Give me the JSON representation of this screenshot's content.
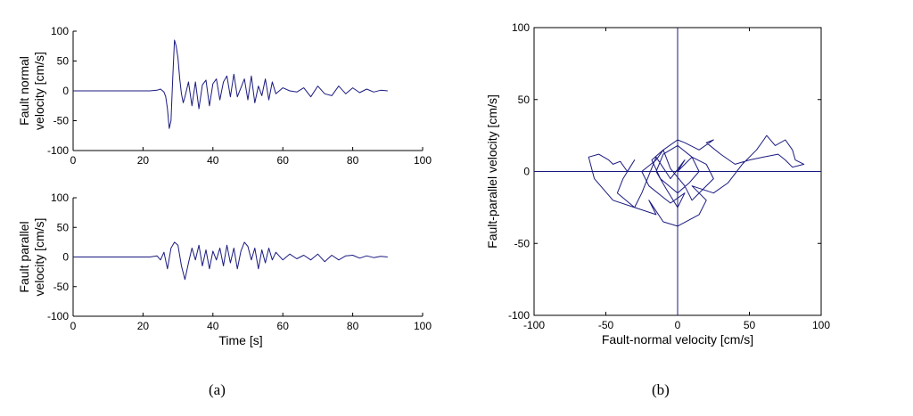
{
  "colors": {
    "line": "#1a1a80",
    "axis": "#000000",
    "background": "#ffffff"
  },
  "captions": {
    "a": "(a)",
    "b": "(b)"
  },
  "chart_data": [
    {
      "id": "fault-normal-timeseries",
      "type": "line",
      "xlabel": "",
      "ylabel": "Fault normal\nvelocity [cm/s]",
      "xlim": [
        0,
        100
      ],
      "ylim": [
        -100,
        100
      ],
      "xticks": [
        0,
        20,
        40,
        60,
        80,
        100
      ],
      "xtick_labels": [
        "0",
        "20",
        "40",
        "60",
        "80",
        "100"
      ],
      "yticks": [
        100,
        50,
        0,
        -50,
        -100
      ],
      "ytick_labels": [
        "100",
        "50",
        "0",
        "-50",
        "-100"
      ],
      "grid": false,
      "series": [
        {
          "x": [
            0,
            22,
            24,
            25,
            26,
            26.5,
            27,
            27.5,
            28,
            28.5,
            29,
            29.5,
            30,
            30.5,
            31,
            31.5,
            32,
            33,
            34,
            35,
            36,
            37,
            38,
            39,
            40,
            41,
            42,
            43,
            44,
            45,
            46,
            47,
            48,
            49,
            50,
            51,
            52,
            53,
            54,
            55,
            56,
            57,
            58,
            60,
            62,
            64,
            66,
            68,
            70,
            72,
            74,
            76,
            78,
            80,
            82,
            84,
            86,
            88,
            90
          ],
          "y": [
            0,
            0,
            1,
            3,
            -2,
            -10,
            -30,
            -63,
            -50,
            20,
            85,
            75,
            55,
            20,
            -5,
            -20,
            -10,
            15,
            -25,
            15,
            -30,
            10,
            18,
            -25,
            12,
            20,
            -15,
            15,
            25,
            -10,
            28,
            -10,
            5,
            20,
            -15,
            25,
            -20,
            8,
            -8,
            20,
            -15,
            15,
            -5,
            5,
            0,
            -2,
            5,
            -10,
            8,
            -5,
            -8,
            8,
            -5,
            5,
            -3,
            3,
            -2,
            1,
            0
          ]
        }
      ]
    },
    {
      "id": "fault-parallel-timeseries",
      "type": "line",
      "xlabel": "Time [s]",
      "ylabel": "Fault parallel\nvelocity [cm/s]",
      "xlim": [
        0,
        100
      ],
      "ylim": [
        -100,
        100
      ],
      "xticks": [
        0,
        20,
        40,
        60,
        80,
        100
      ],
      "xtick_labels": [
        "0",
        "20",
        "40",
        "60",
        "80",
        "100"
      ],
      "yticks": [
        100,
        50,
        0,
        -50,
        -100
      ],
      "ytick_labels": [
        "100",
        "50",
        "0",
        "-50",
        "-100"
      ],
      "grid": false,
      "series": [
        {
          "x": [
            0,
            22,
            24,
            25,
            26,
            27,
            28,
            29,
            30,
            31,
            32,
            33,
            34,
            35,
            36,
            37,
            38,
            39,
            40,
            41,
            42,
            43,
            44,
            45,
            46,
            47,
            48,
            49,
            50,
            51,
            52,
            53,
            54,
            55,
            56,
            57,
            58,
            60,
            62,
            64,
            66,
            68,
            70,
            72,
            74,
            76,
            78,
            80,
            82,
            84,
            86,
            88,
            90
          ],
          "y": [
            0,
            0,
            2,
            -5,
            8,
            -20,
            15,
            25,
            20,
            -15,
            -38,
            -10,
            15,
            -5,
            20,
            -15,
            12,
            -20,
            10,
            -5,
            15,
            -15,
            20,
            -10,
            15,
            -20,
            10,
            25,
            18,
            -5,
            15,
            -20,
            12,
            -10,
            15,
            -5,
            8,
            -5,
            5,
            -3,
            3,
            -5,
            5,
            -8,
            3,
            -5,
            2,
            3,
            -2,
            2,
            -1,
            1,
            0
          ]
        }
      ]
    },
    {
      "id": "hodogram",
      "type": "line",
      "xlabel": "Fault-normal velocity [cm/s]",
      "ylabel": "Fault-parallel velocity [cm/s]",
      "xlim": [
        -100,
        100
      ],
      "ylim": [
        -100,
        100
      ],
      "xticks": [
        -100,
        -50,
        0,
        50,
        100
      ],
      "xtick_labels": [
        "-100",
        "-50",
        "0",
        "50",
        "100"
      ],
      "yticks": [
        100,
        50,
        0,
        -50,
        -100
      ],
      "ytick_labels": [
        "100",
        "50",
        "0",
        "-50",
        "-100"
      ],
      "grid": false,
      "series": [
        {
          "x": [
            0,
            5,
            -5,
            -15,
            -25,
            -30,
            -45,
            -58,
            -62,
            -55,
            -48,
            -45,
            -40,
            -35,
            -30,
            -38,
            -42,
            -30,
            -15,
            -20,
            -10,
            0,
            15,
            20,
            10,
            25,
            35,
            45,
            55,
            60,
            62,
            68,
            75,
            80,
            82,
            88,
            80,
            75,
            70,
            60,
            50,
            40,
            30,
            20,
            25,
            15,
            5,
            0,
            -10,
            -15,
            -25,
            -20,
            -10,
            -5,
            5,
            0,
            -8,
            -15,
            -10,
            0,
            10,
            20,
            25,
            18,
            10,
            5,
            -5,
            -10,
            -18,
            -12,
            0,
            8,
            15,
            10,
            5,
            0
          ],
          "y": [
            0,
            8,
            -5,
            10,
            -15,
            -25,
            -20,
            -5,
            10,
            12,
            8,
            5,
            7,
            0,
            8,
            -5,
            -15,
            -25,
            -30,
            -20,
            -35,
            -38,
            -30,
            -20,
            -10,
            -15,
            -8,
            5,
            15,
            22,
            25,
            18,
            22,
            15,
            8,
            5,
            3,
            8,
            12,
            10,
            8,
            5,
            12,
            20,
            22,
            15,
            20,
            22,
            15,
            8,
            0,
            -10,
            -18,
            -22,
            -15,
            -25,
            -12,
            0,
            12,
            18,
            10,
            5,
            -5,
            -12,
            -20,
            -10,
            2,
            15,
            8,
            -5,
            -15,
            -8,
            0,
            10,
            5,
            0
          ]
        }
      ]
    }
  ]
}
